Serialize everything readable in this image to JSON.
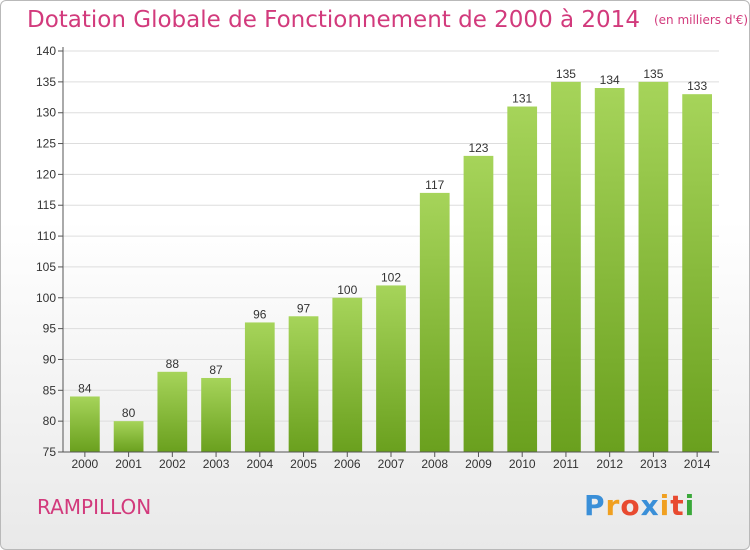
{
  "chart_data": {
    "type": "bar",
    "title": "Dotation Globale de Fonctionnement de 2000 à 2014",
    "subtitle": "(en milliers d'€)",
    "categories": [
      "2000",
      "2001",
      "2002",
      "2003",
      "2004",
      "2005",
      "2006",
      "2007",
      "2008",
      "2009",
      "2010",
      "2011",
      "2012",
      "2013",
      "2014"
    ],
    "values": [
      84,
      80,
      88,
      87,
      96,
      97,
      100,
      102,
      117,
      123,
      131,
      135,
      134,
      135,
      133
    ],
    "xlabel": "",
    "ylabel": "",
    "ylim": [
      75,
      140
    ],
    "yticks": [
      75,
      80,
      85,
      90,
      95,
      100,
      105,
      110,
      115,
      120,
      125,
      130,
      135,
      140
    ],
    "grid": true,
    "bar_color_top": "#a6d45a",
    "bar_color_bottom": "#6aa01e"
  },
  "footer": {
    "commune": "RAMPILLON",
    "logo_letters": [
      "P",
      "r",
      "o",
      "x",
      "i",
      "t",
      "i"
    ],
    "logo_colors": [
      "#3a8fd8",
      "#f0a020",
      "#e84a30",
      "#3a8fd8",
      "#f0a020",
      "#e84a30",
      "#3aa83a"
    ]
  },
  "colors": {
    "title": "#d23a7c",
    "grid": "#dddddd",
    "axis": "#555555"
  }
}
